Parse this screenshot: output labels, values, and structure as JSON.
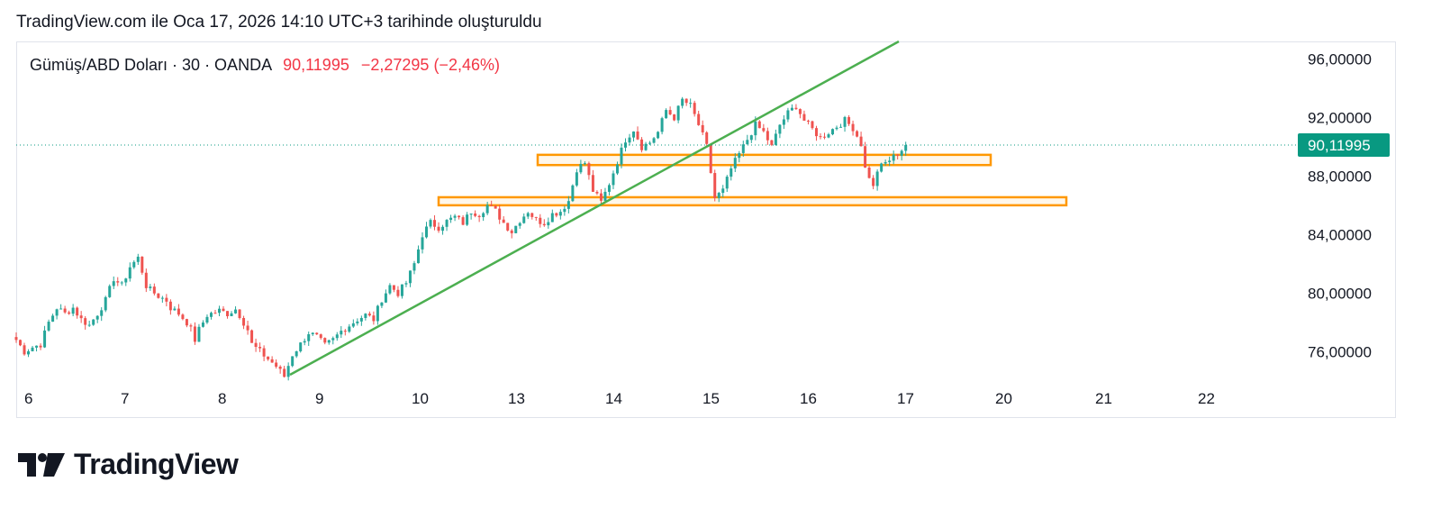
{
  "header": {
    "caption": "TradingView.com ile Oca 17, 2026 14:10 UTC+3 tarihinde oluşturuldu"
  },
  "legend": {
    "symbol": "Gümüş/ABD Doları · 30 · OANDA",
    "last": "90,11995",
    "change": "−2,27295 (−2,46%)"
  },
  "colors": {
    "up": "#26a69a",
    "down": "#ef5350",
    "trendline": "#4caf50",
    "zone": "#ff9800",
    "price_tag": "#089981",
    "text": "#131722"
  },
  "footer": {
    "brand": "TradingView",
    "logo_icon": "tradingview-logo-icon"
  },
  "chart_data": {
    "type": "candlestick",
    "interval": "30",
    "y_axis": {
      "labels": [
        "96,00000",
        "92,00000",
        "88,00000",
        "84,00000",
        "80,00000",
        "76,00000"
      ],
      "values": [
        96,
        92,
        88,
        84,
        80,
        76
      ],
      "ylim": [
        73.8,
        97.2
      ],
      "position": "right"
    },
    "x_axis": {
      "labels": [
        "6",
        "7",
        "8",
        "9",
        "10",
        "13",
        "14",
        "15",
        "16",
        "17",
        "20",
        "21",
        "22"
      ]
    },
    "last_price": 90.11995,
    "last_price_label": "90,11995",
    "path": [
      [
        0,
        76.8
      ],
      [
        2,
        76.0
      ],
      [
        4,
        76.3
      ],
      [
        6,
        76.5
      ],
      [
        8,
        78.0
      ],
      [
        10,
        79.0
      ],
      [
        12,
        78.6
      ],
      [
        14,
        79.0
      ],
      [
        16,
        78.2
      ],
      [
        18,
        77.8
      ],
      [
        20,
        78.6
      ],
      [
        22,
        79.5
      ],
      [
        24,
        81.0
      ],
      [
        26,
        80.5
      ],
      [
        28,
        81.8
      ],
      [
        30,
        82.4
      ],
      [
        31,
        81.5
      ],
      [
        32,
        80.5
      ],
      [
        33,
        80.2
      ],
      [
        35,
        79.8
      ],
      [
        37,
        79.5
      ],
      [
        38,
        79.0
      ],
      [
        40,
        78.6
      ],
      [
        42,
        78.0
      ],
      [
        43,
        77.5
      ],
      [
        44,
        76.8
      ],
      [
        45,
        77.5
      ],
      [
        47,
        78.5
      ],
      [
        50,
        78.8
      ],
      [
        52,
        78.6
      ],
      [
        54,
        78.9
      ],
      [
        55,
        78.5
      ],
      [
        56,
        78.0
      ],
      [
        57,
        77.5
      ],
      [
        58,
        76.5
      ],
      [
        60,
        76.0
      ],
      [
        62,
        75.5
      ],
      [
        64,
        75.0
      ],
      [
        66,
        74.3
      ],
      [
        68,
        75.8
      ],
      [
        70,
        76.5
      ],
      [
        72,
        77.3
      ],
      [
        74,
        77.0
      ],
      [
        76,
        76.4
      ],
      [
        78,
        76.8
      ],
      [
        80,
        77.4
      ],
      [
        82,
        77.8
      ],
      [
        84,
        78.2
      ],
      [
        86,
        78.5
      ],
      [
        88,
        78.2
      ],
      [
        90,
        79.6
      ],
      [
        92,
        80.5
      ],
      [
        94,
        80.0
      ],
      [
        96,
        80.7
      ],
      [
        98,
        82.0
      ],
      [
        100,
        84.0
      ],
      [
        102,
        84.8
      ],
      [
        104,
        84.5
      ],
      [
        106,
        84.9
      ],
      [
        108,
        85.2
      ],
      [
        110,
        84.8
      ],
      [
        112,
        85.6
      ],
      [
        114,
        85.4
      ],
      [
        116,
        86.0
      ],
      [
        118,
        85.6
      ],
      [
        120,
        84.8
      ],
      [
        122,
        84.2
      ],
      [
        124,
        85.0
      ],
      [
        126,
        85.6
      ],
      [
        128,
        85.0
      ],
      [
        130,
        84.8
      ],
      [
        132,
        85.4
      ],
      [
        134,
        85.6
      ],
      [
        136,
        86.3
      ],
      [
        138,
        88.5
      ],
      [
        140,
        88.9
      ],
      [
        142,
        87.0
      ],
      [
        144,
        86.2
      ],
      [
        146,
        87.5
      ],
      [
        148,
        89.0
      ],
      [
        150,
        90.5
      ],
      [
        152,
        91.2
      ],
      [
        154,
        90.0
      ],
      [
        156,
        90.3
      ],
      [
        158,
        91.0
      ],
      [
        160,
        92.5
      ],
      [
        162,
        92.0
      ],
      [
        164,
        93.2
      ],
      [
        166,
        92.8
      ],
      [
        168,
        91.5
      ],
      [
        170,
        90.0
      ],
      [
        172,
        86.5
      ],
      [
        174,
        87.0
      ],
      [
        176,
        88.5
      ],
      [
        178,
        89.5
      ],
      [
        180,
        90.5
      ],
      [
        182,
        91.5
      ],
      [
        184,
        91.0
      ],
      [
        186,
        90.0
      ],
      [
        188,
        91.5
      ],
      [
        190,
        92.3
      ],
      [
        192,
        92.8
      ],
      [
        194,
        91.8
      ],
      [
        196,
        91.2
      ],
      [
        198,
        90.6
      ],
      [
        200,
        91.0
      ],
      [
        202,
        91.4
      ],
      [
        204,
        91.8
      ],
      [
        206,
        91.3
      ],
      [
        208,
        90.2
      ],
      [
        209,
        88.5
      ],
      [
        210,
        88.0
      ],
      [
        211,
        87.2
      ],
      [
        212,
        88.4
      ],
      [
        214,
        88.9
      ],
      [
        216,
        89.3
      ],
      [
        218,
        89.8
      ],
      [
        219,
        90.12
      ]
    ]
  }
}
